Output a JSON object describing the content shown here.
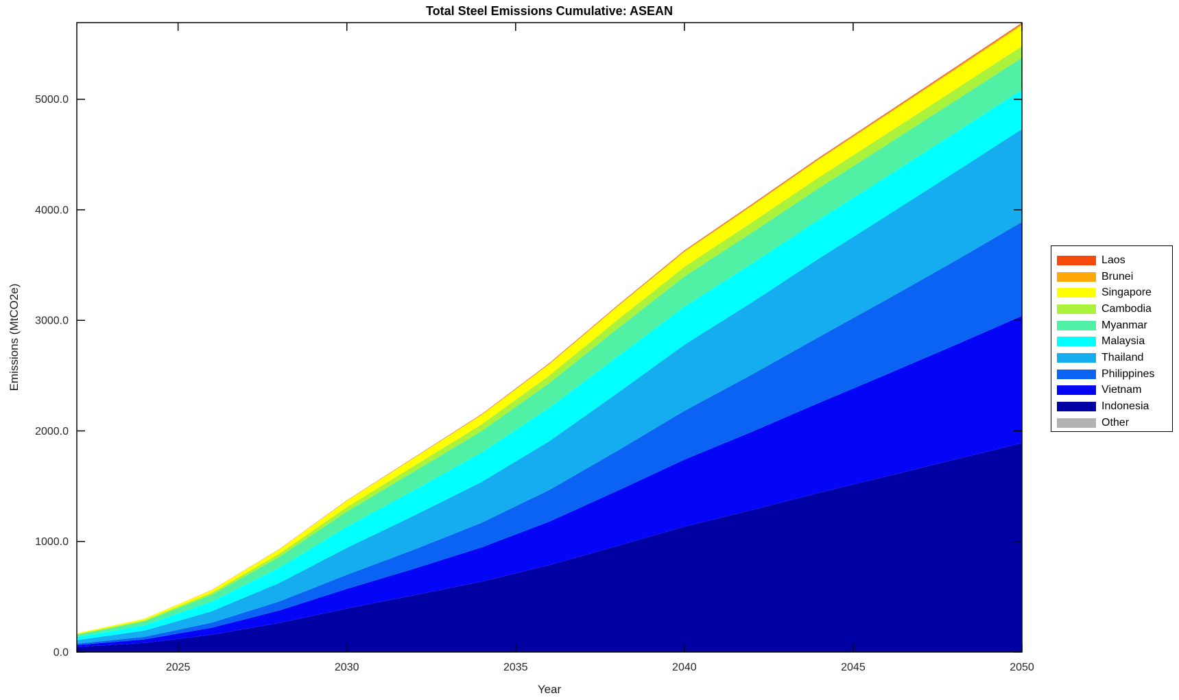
{
  "title": "Total Steel Emissions Cumulative: ASEAN",
  "xlabel": "Year",
  "ylabel": "Emissions (MtCO2e)",
  "chart_data": {
    "type": "area",
    "stacked": true,
    "title": "Total Steel Emissions Cumulative: ASEAN",
    "xlabel": "Year",
    "ylabel": "Emissions (MtCO2e)",
    "grid": false,
    "legend_position": "right-outside",
    "xlim": [
      2022,
      2050
    ],
    "ylim": [
      0,
      5693
    ],
    "x": [
      2022,
      2024,
      2026,
      2028,
      2030,
      2032,
      2034,
      2036,
      2038,
      2040,
      2042,
      2044,
      2046,
      2048,
      2050
    ],
    "series": [
      {
        "name": "Indonesia",
        "color": "#0000A3",
        "values": [
          46,
          82,
          156,
          263,
          394,
          514,
          638,
          786,
          959,
          1134,
          1285,
          1441,
          1590,
          1740,
          1890
        ]
      },
      {
        "name": "Vietnam",
        "color": "#0404F7",
        "values": [
          17,
          32,
          64,
          113,
          177,
          240,
          309,
          394,
          497,
          606,
          707,
          814,
          922,
          1034,
          1150
        ]
      },
      {
        "name": "Philippines",
        "color": "#0A63F3",
        "values": [
          12,
          23,
          46,
          81,
          127,
          173,
          223,
          286,
          361,
          442,
          517,
          597,
          677,
          761,
          850
        ]
      },
      {
        "name": "Thailand",
        "color": "#15ACF0",
        "values": [
          32,
          56,
          103,
          168,
          244,
          308,
          370,
          441,
          521,
          597,
          654,
          710,
          758,
          802,
          840
        ]
      },
      {
        "name": "Malaysia",
        "color": "#00FFFF",
        "values": [
          29,
          49,
          87,
          137,
          191,
          231,
          266,
          303,
          330,
          345,
          350,
          352,
          354,
          355,
          355
        ]
      },
      {
        "name": "Myanmar",
        "color": "#50F1A4",
        "values": [
          20,
          35,
          62,
          98,
          137,
          168,
          194,
          223,
          253,
          272,
          281,
          286,
          288,
          290,
          290
        ]
      },
      {
        "name": "Cambodia",
        "color": "#AAF23C",
        "values": [
          6,
          10,
          18,
          29,
          41,
          51,
          60,
          69,
          79,
          88,
          93,
          97,
          100,
          102,
          105
        ]
      },
      {
        "name": "Singapore",
        "color": "#FFFF00",
        "values": [
          8,
          13,
          24,
          39,
          57,
          72,
          86,
          102,
          120,
          136,
          149,
          161,
          171,
          180,
          190
        ]
      },
      {
        "name": "Brunei",
        "color": "#FFA808",
        "values": [
          0,
          1,
          1,
          2,
          2,
          3,
          4,
          5,
          6,
          7,
          8,
          9,
          10,
          11,
          12
        ]
      },
      {
        "name": "Laos",
        "color": "#F6490C",
        "values": [
          0,
          0,
          1,
          1,
          2,
          2,
          3,
          4,
          4,
          5,
          6,
          6,
          7,
          8,
          8
        ]
      },
      {
        "name": "Other",
        "color": "#B2B2B2",
        "values": [
          0,
          0,
          0,
          1,
          1,
          1,
          1,
          2,
          2,
          2,
          2,
          3,
          3,
          3,
          3
        ]
      }
    ],
    "legend_entries_top_to_bottom": [
      "Laos",
      "Brunei",
      "Singapore",
      "Cambodia",
      "Myanmar",
      "Malaysia",
      "Thailand",
      "Philippines",
      "Vietnam",
      "Indonesia",
      "Other"
    ],
    "xticks": {
      "values": [
        2025,
        2030,
        2035,
        2040,
        2045,
        2050
      ],
      "labels": [
        "2025",
        "2030",
        "2035",
        "2040",
        "2045",
        "2050"
      ]
    },
    "yticks": {
      "values": [
        0,
        1000,
        2000,
        3000,
        4000,
        5000
      ],
      "labels": [
        "0.0",
        "1000.0",
        "2000.0",
        "3000.0",
        "4000.0",
        "5000.0"
      ]
    }
  }
}
